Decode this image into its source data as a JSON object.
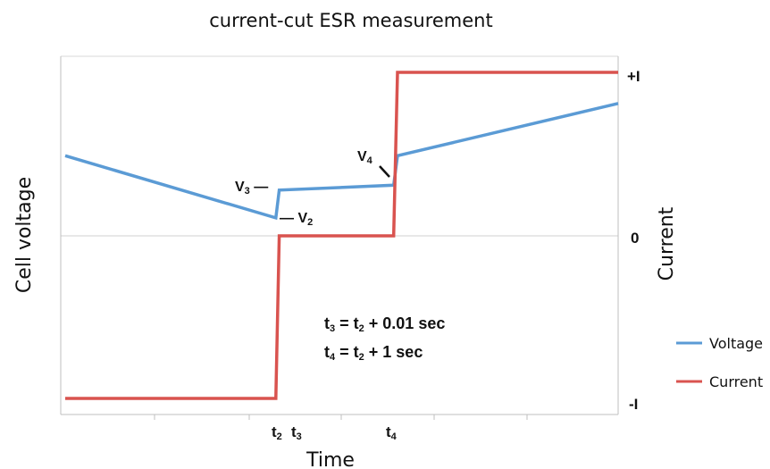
{
  "chart_data": {
    "type": "line",
    "title": "current-cut ESR measurement",
    "xlabel": "Time",
    "ylabel_left": "Cell voltage",
    "ylabel_right": "Current",
    "x_ticks": [
      {
        "base": "t",
        "sub": "2"
      },
      {
        "base": "t",
        "sub": "3"
      },
      {
        "base": "t",
        "sub": "4"
      }
    ],
    "right_ticks": [
      "+I",
      "0",
      "-I"
    ],
    "colors": {
      "voltage": "#5b9bd5",
      "current": "#d9534f"
    },
    "series": [
      {
        "name": "Voltage",
        "x": [
          0,
          0.381,
          0.387,
          0.594,
          0.601,
          1.0
        ],
        "y": [
          0.49,
          0.11,
          0.28,
          0.31,
          0.49,
          0.81
        ]
      },
      {
        "name": "Current",
        "x": [
          0,
          0.381,
          0.387,
          0.594,
          0.601,
          1.0
        ],
        "y": [
          -1,
          -1,
          0,
          0,
          1,
          1
        ]
      }
    ],
    "annotations": [
      {
        "base": "V",
        "sub": "3",
        "suffix": " —"
      },
      {
        "base": "— V",
        "sub": "2",
        "suffix": ""
      },
      {
        "base": "V",
        "sub": "4",
        "suffix": ""
      }
    ],
    "equations": [
      {
        "a": "t",
        "a_sub": "3",
        "mid": " = t",
        "b_sub": "2",
        "tail": " + 0.01 sec"
      },
      {
        "a": "t",
        "a_sub": "4",
        "mid": " = t",
        "b_sub": "2",
        "tail": " + 1 sec"
      }
    ],
    "legend_position": "right",
    "grid": true
  }
}
